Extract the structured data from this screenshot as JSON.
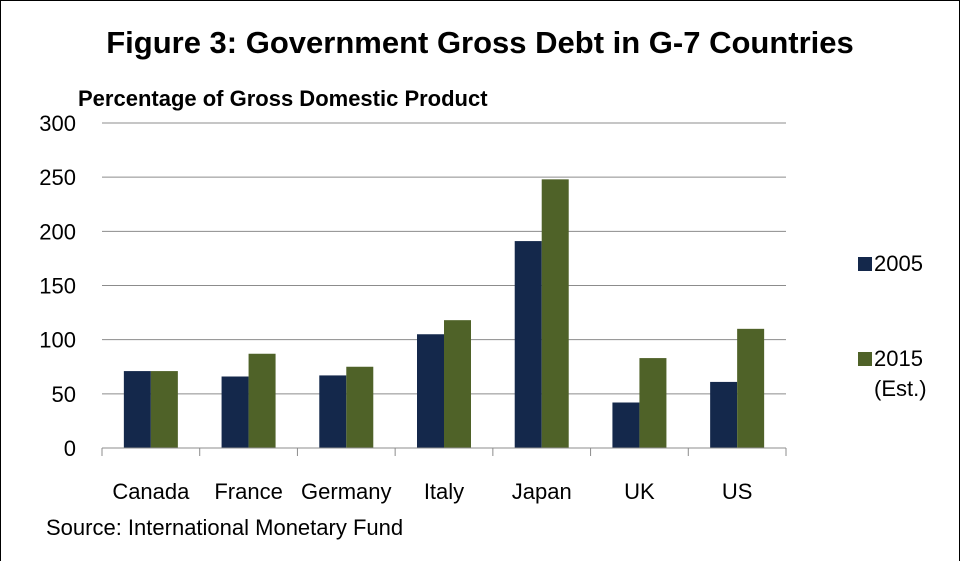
{
  "chart_data": {
    "type": "bar",
    "title": "Figure 3: Government Gross Debt in G-7 Countries",
    "ylabel": "Percentage of Gross Domestic Product",
    "xlabel": "",
    "categories": [
      "Canada",
      "France",
      "Germany",
      "Italy",
      "Japan",
      "UK",
      "US"
    ],
    "series": [
      {
        "name": "2005",
        "name_note": "",
        "color": "#14284b",
        "values": [
          71,
          66,
          67,
          105,
          191,
          42,
          61
        ]
      },
      {
        "name": "2015",
        "name_note": "(Est.)",
        "color": "#4f6228",
        "values": [
          71,
          87,
          75,
          118,
          248,
          83,
          110
        ]
      }
    ],
    "ylim": [
      0,
      300
    ],
    "yticks": [
      0,
      50,
      100,
      150,
      200,
      250,
      300
    ],
    "grid": true,
    "legend": "right",
    "source": "Source: International Monetary Fund"
  }
}
